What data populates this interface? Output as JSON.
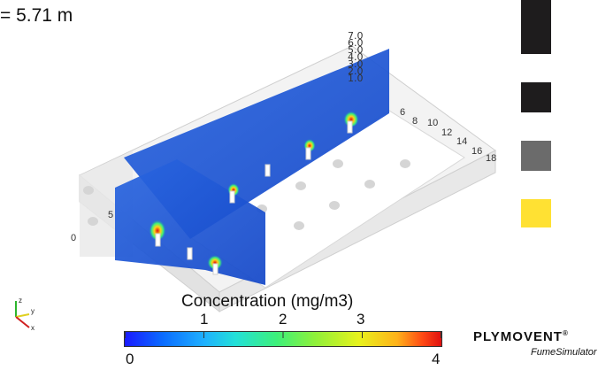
{
  "readout": {
    "height_text": "= 5.71 m"
  },
  "vertical_scale": {
    "ticks": [
      "7.0",
      "6.0",
      "5.0",
      "4.0",
      "3.0",
      "2.0",
      "1.0"
    ]
  },
  "room_axis": {
    "ticks": [
      "0",
      "5",
      "6",
      "8",
      "10",
      "12",
      "14",
      "16",
      "18"
    ]
  },
  "colorbar": {
    "title": "Concentration (mg/m3)",
    "ticks": [
      "0",
      "1",
      "2",
      "3",
      "4"
    ],
    "min": 0,
    "max": 4
  },
  "legend": {
    "swatch_colors": [
      "#1e1c1d",
      "#1e1c1d",
      "#6b6b6b",
      "#ffe133"
    ]
  },
  "brand": {
    "name": "PLYMOVENT",
    "registered": "®",
    "product": "FumeSimulator"
  },
  "orientation": {
    "axes": [
      "z",
      "y",
      "x"
    ]
  },
  "colors": {
    "plume_core": "#e01010",
    "plume_mid": "#ffd21a",
    "plane_blue": "#1b58d8",
    "room_fill": "#eeeeee"
  }
}
